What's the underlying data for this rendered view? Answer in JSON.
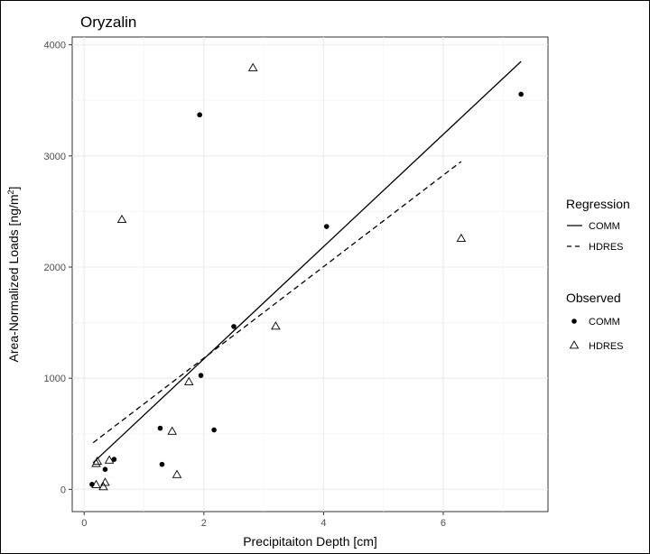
{
  "chart_data": {
    "type": "scatter",
    "title": "Oryzalin",
    "xlabel": "Precipitaiton Depth [cm]",
    "ylabel_main": "Area-Normalized Loads [ng/m",
    "ylabel_sup": "2",
    "ylabel_end": "]",
    "xlim": [
      -0.2,
      7.75
    ],
    "ylim": [
      -200,
      4070
    ],
    "xticks": [
      0,
      2,
      4,
      6
    ],
    "yticks": [
      0,
      1000,
      2000,
      3000,
      4000
    ],
    "grid": true,
    "legend_position": "right",
    "regression": {
      "title": "Regression",
      "lines": [
        {
          "name": "COMM",
          "style": "solid",
          "x": [
            0.15,
            7.3
          ],
          "y": [
            240,
            3850
          ]
        },
        {
          "name": "HDRES",
          "style": "dashed",
          "x": [
            0.15,
            6.3
          ],
          "y": [
            420,
            2950
          ]
        }
      ]
    },
    "observed": {
      "title": "Observed",
      "series": [
        {
          "name": "COMM",
          "marker": "filled-circle",
          "points": [
            [
              0.13,
              45
            ],
            [
              0.35,
              180
            ],
            [
              0.5,
              270
            ],
            [
              1.27,
              550
            ],
            [
              1.3,
              225
            ],
            [
              1.93,
              3370
            ],
            [
              1.95,
              1025
            ],
            [
              2.17,
              535
            ],
            [
              2.5,
              1465
            ],
            [
              4.05,
              2365
            ],
            [
              7.3,
              3555
            ]
          ]
        },
        {
          "name": "HDRES",
          "marker": "open-triangle",
          "points": [
            [
              0.2,
              230
            ],
            [
              0.22,
              250
            ],
            [
              0.2,
              40
            ],
            [
              0.32,
              20
            ],
            [
              0.35,
              60
            ],
            [
              0.42,
              260
            ],
            [
              0.63,
              2425
            ],
            [
              1.47,
              520
            ],
            [
              1.55,
              130
            ],
            [
              1.75,
              965
            ],
            [
              2.82,
              3790
            ],
            [
              3.2,
              1465
            ],
            [
              6.3,
              2255
            ]
          ]
        }
      ]
    }
  }
}
